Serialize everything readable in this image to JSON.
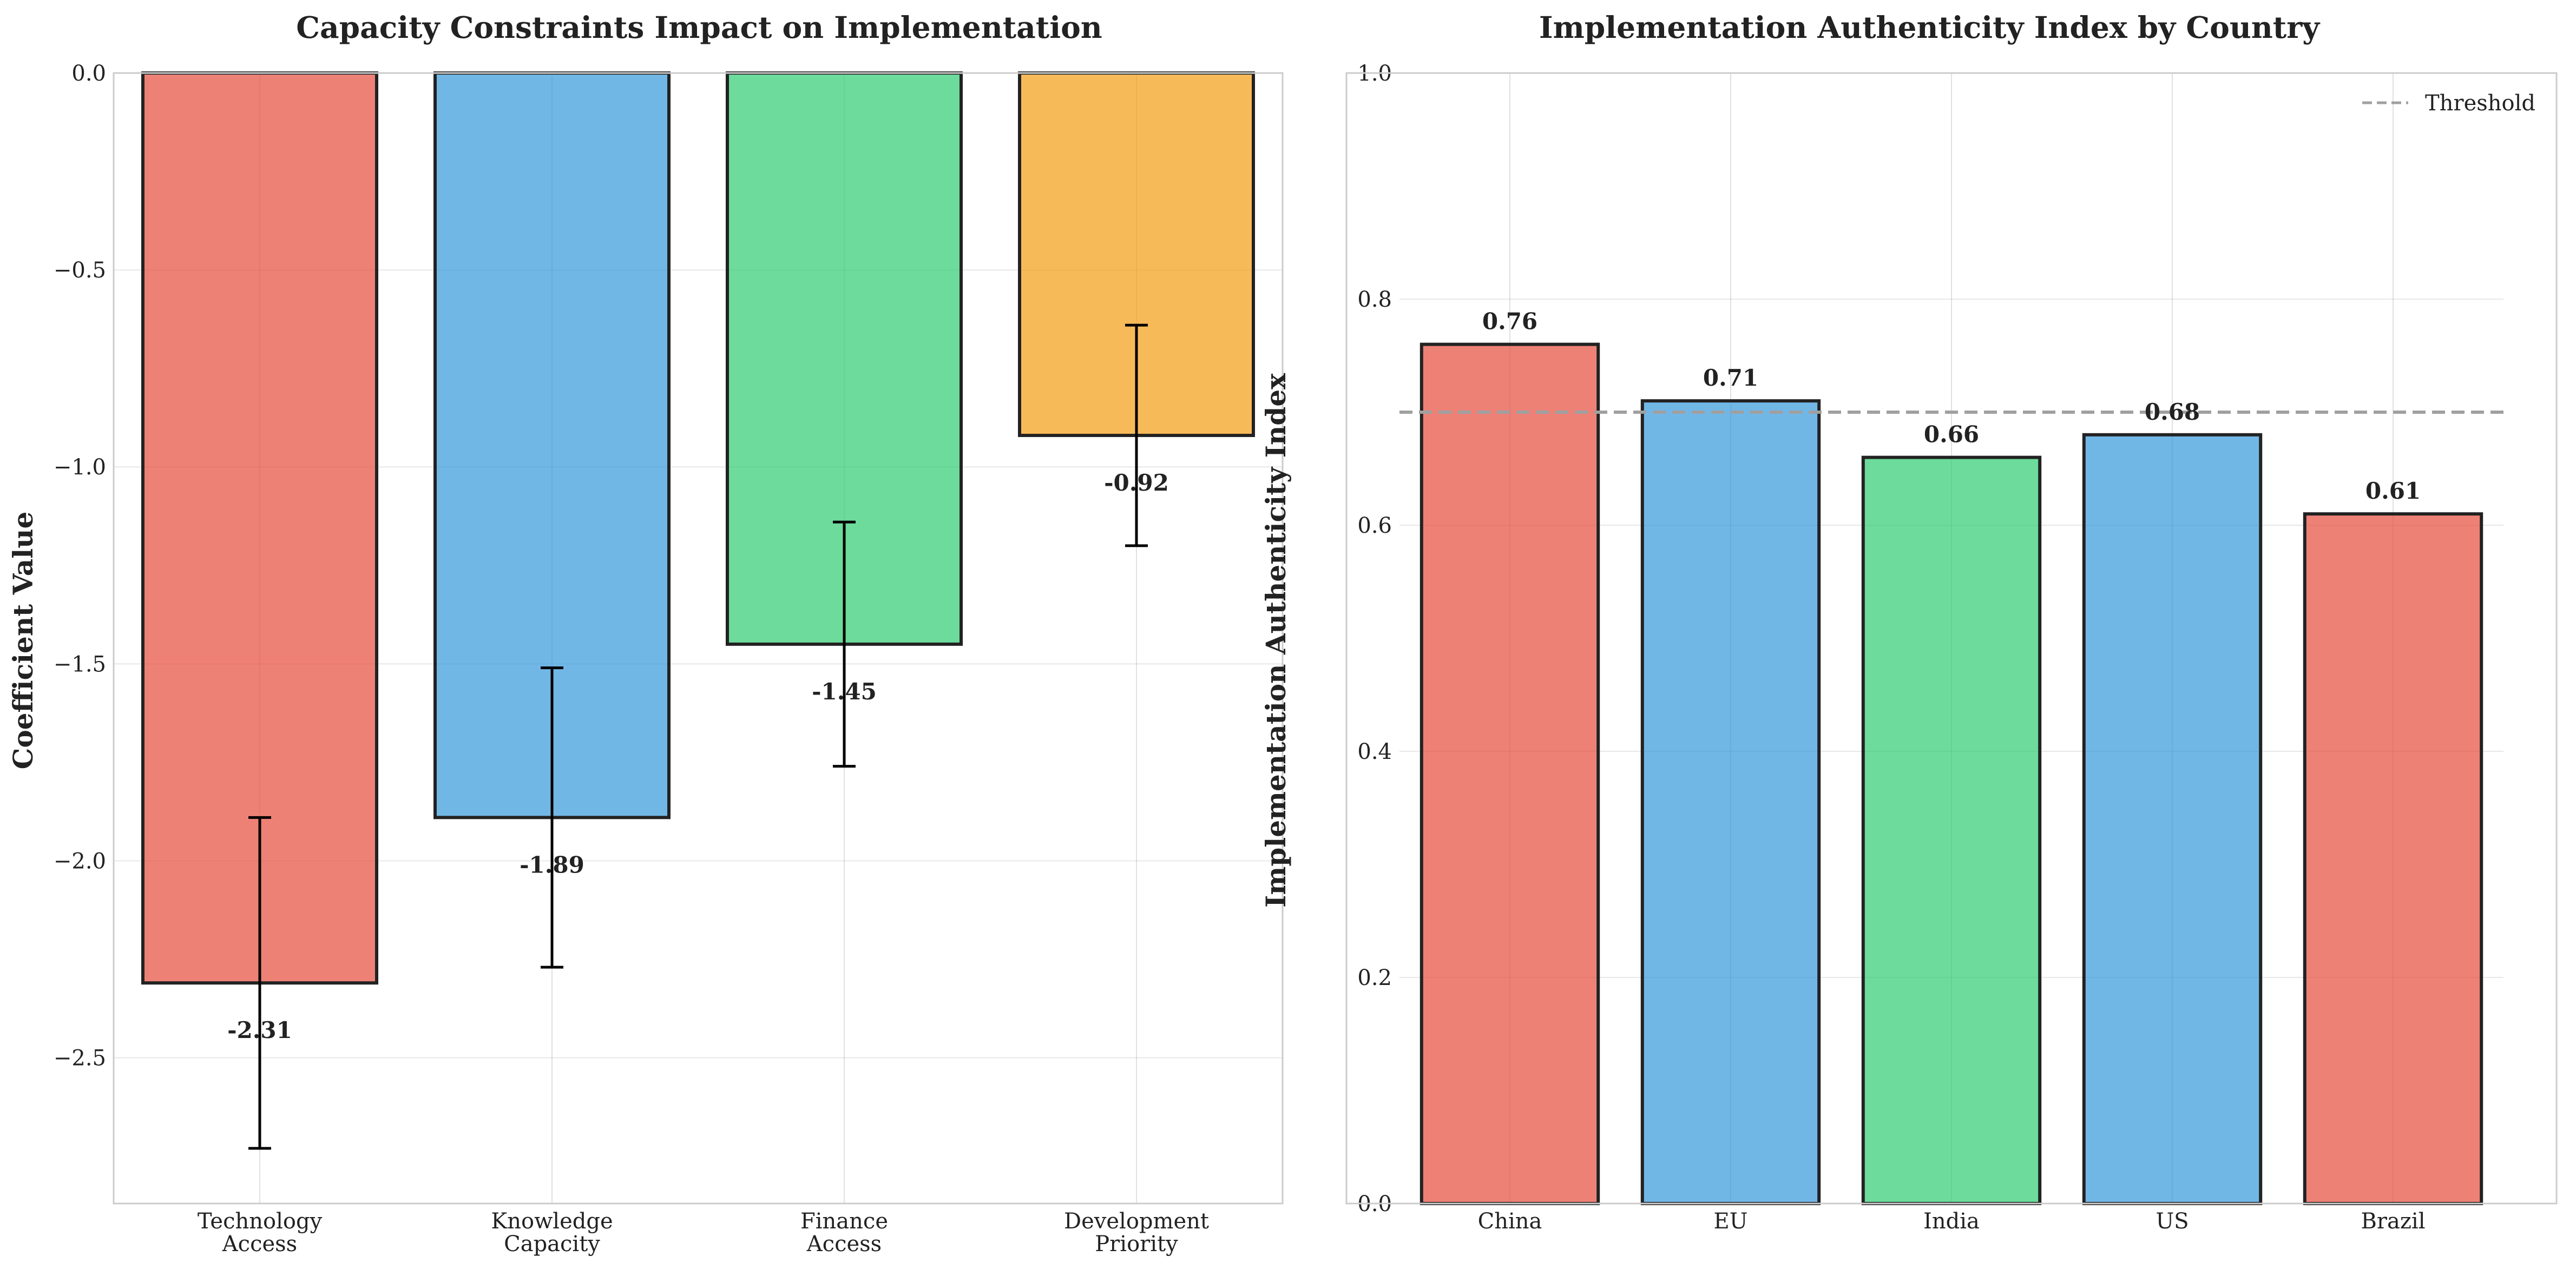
{
  "chart_data": [
    {
      "type": "bar",
      "title": "Capacity Constraints Impact on Implementation",
      "xlabel": "",
      "ylabel": "Coefficient Value",
      "categories": [
        "Technology\nAccess",
        "Knowledge\nCapacity",
        "Finance\nAccess",
        "Development\nPriority"
      ],
      "values": [
        -2.31,
        -1.89,
        -1.45,
        -0.92
      ],
      "value_labels": [
        "-2.31",
        "-1.89",
        "-1.45",
        "-0.92"
      ],
      "error_bars": [
        0.42,
        0.38,
        0.31,
        0.28
      ],
      "colors": [
        "#e74c3c",
        "#3498db",
        "#2ecc71",
        "#f39c12"
      ],
      "ylim": [
        -2.87,
        0.0
      ],
      "yticks": [
        0.0,
        -0.5,
        -1.0,
        -1.5,
        -2.0,
        -2.5
      ],
      "ytick_labels": [
        "0.0",
        "−0.5",
        "−1.0",
        "−1.5",
        "−2.0",
        "−2.5"
      ],
      "grid": true
    },
    {
      "type": "bar",
      "title": "Implementation Authenticity Index by Country",
      "xlabel": "",
      "ylabel": "Implementation Authenticity Index",
      "categories": [
        "China",
        "EU",
        "India",
        "US",
        "Brazil"
      ],
      "values": [
        0.76,
        0.71,
        0.66,
        0.68,
        0.61
      ],
      "value_labels": [
        "0.76",
        "0.71",
        "0.66",
        "0.68",
        "0.61"
      ],
      "colors": [
        "#e74c3c",
        "#3498db",
        "#2ecc71",
        "#3498db",
        "#e74c3c"
      ],
      "ylim": [
        0.0,
        1.0
      ],
      "yticks": [
        0.0,
        0.2,
        0.4,
        0.6,
        0.8,
        1.0
      ],
      "ytick_labels": [
        "0.0",
        "0.2",
        "0.4",
        "0.6",
        "0.8",
        "1.0"
      ],
      "threshold": {
        "value": 0.7,
        "label": "Threshold",
        "color": "#a0a0a0"
      },
      "legend": "top-right",
      "grid": true
    }
  ]
}
